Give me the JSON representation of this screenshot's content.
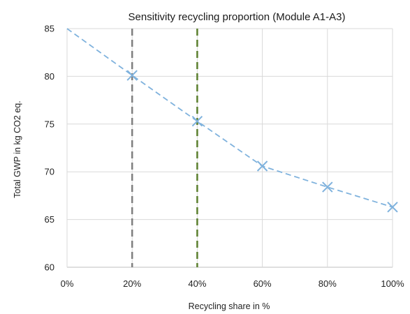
{
  "chart_data": {
    "type": "line",
    "title": "Sensitivity recycling proportion (Module A1-A3)",
    "xlabel": "Recycling share in %",
    "ylabel": "Total GWP in kg CO2 eq.",
    "x_ticks": [
      "0%",
      "20%",
      "40%",
      "60%",
      "80%",
      "100%"
    ],
    "y_ticks": [
      "60",
      "65",
      "70",
      "75",
      "80",
      "85"
    ],
    "xlim": [
      0,
      100
    ],
    "ylim": [
      60,
      85
    ],
    "grid": "both",
    "series": [
      {
        "x": [
          0,
          20,
          40,
          60,
          80,
          100
        ],
        "y": [
          85.0,
          80.1,
          75.3,
          70.6,
          68.4,
          66.3
        ],
        "markers": [
          false,
          true,
          true,
          true,
          true,
          true
        ],
        "color": "#7fb2dd",
        "style": "dashed"
      }
    ],
    "reference_lines": [
      {
        "x": 20,
        "color": "#7f7f7f",
        "style": "dashed"
      },
      {
        "x": 40,
        "color": "#5b7f2e",
        "style": "dashed"
      }
    ]
  }
}
